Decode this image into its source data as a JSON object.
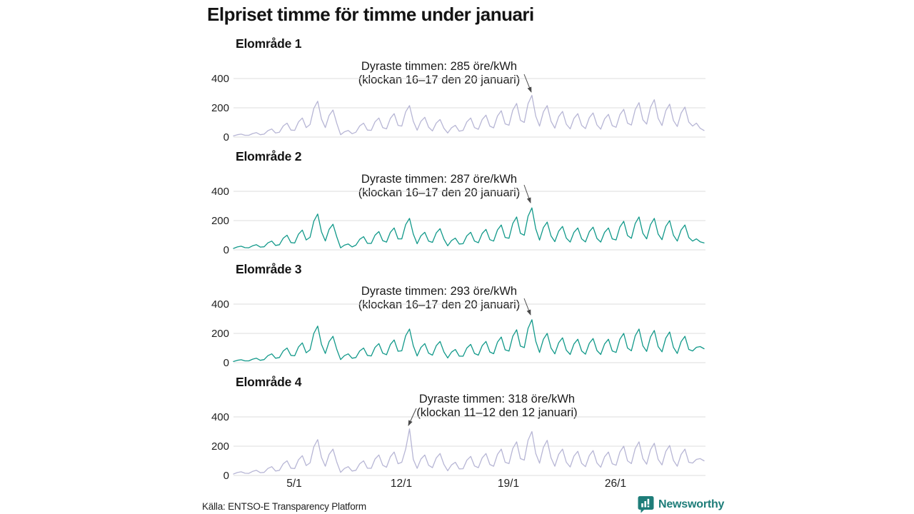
{
  "source": "Källa: ENTSO-E Transparency Platform",
  "brand": {
    "name": "Newsworthy",
    "color": "#1e7d79"
  },
  "chart_data": {
    "type": "line",
    "title": "Elpriset timme för timme under januari",
    "x_axis": {
      "ticks": [
        "5/1",
        "12/1",
        "19/1",
        "26/1"
      ],
      "start": "1/1",
      "end": "31/1",
      "unit": "datum (januari)"
    },
    "y_axis": {
      "ticks": [
        0,
        200,
        400
      ],
      "ylim": [
        0,
        450
      ],
      "unit": "öre/kWh"
    },
    "grid": "horizontal-only",
    "legend": "none",
    "points_per_day": 4,
    "series": [
      {
        "name": "Elområde 1",
        "color": "#b7b6d5",
        "annotation": {
          "line1": "Dyraste timmen: 285 öre/kWh",
          "line2": "(klockan 16–17 den 20 januari)"
        },
        "max": {
          "value_ore_per_kwh": 285,
          "hour": "16–17",
          "date": "20 januari"
        },
        "values": [
          8,
          16,
          20,
          12,
          12,
          24,
          30,
          16,
          20,
          44,
          55,
          28,
          33,
          76,
          95,
          48,
          46,
          104,
          130,
          65,
          86,
          196,
          245,
          123,
          65,
          148,
          185,
          93,
          16,
          36,
          45,
          23,
          33,
          76,
          95,
          48,
          46,
          104,
          130,
          65,
          56,
          128,
          160,
          80,
          75,
          172,
          215,
          108,
          47,
          108,
          135,
          68,
          42,
          96,
          120,
          60,
          28,
          64,
          80,
          40,
          46,
          104,
          130,
          65,
          53,
          120,
          150,
          75,
          63,
          144,
          180,
          90,
          81,
          184,
          230,
          115,
          100,
          228,
          285,
          143,
          75,
          172,
          215,
          108,
          61,
          140,
          175,
          88,
          56,
          128,
          160,
          80,
          58,
          132,
          165,
          83,
          54,
          124,
          155,
          78,
          67,
          152,
          190,
          95,
          82,
          188,
          235,
          118,
          89,
          204,
          255,
          128,
          79,
          180,
          225,
          113,
          72,
          164,
          205,
          103,
          75,
          95,
          60,
          45
        ]
      },
      {
        "name": "Elområde 2",
        "color": "#12998a",
        "annotation": {
          "line1": "Dyraste timmen: 287 öre/kWh",
          "line2": "(klockan 16–17 den 20 januari)"
        },
        "max": {
          "value_ore_per_kwh": 287,
          "hour": "16–17",
          "date": "20 januari"
        },
        "values": [
          10,
          20,
          25,
          15,
          14,
          28,
          35,
          19,
          21,
          48,
          60,
          30,
          35,
          80,
          100,
          50,
          47,
          108,
          135,
          68,
          86,
          196,
          245,
          123,
          61,
          140,
          175,
          88,
          14,
          32,
          40,
          20,
          32,
          72,
          90,
          45,
          44,
          100,
          125,
          63,
          53,
          120,
          150,
          75,
          75,
          172,
          215,
          108,
          42,
          96,
          120,
          60,
          51,
          116,
          145,
          73,
          28,
          64,
          80,
          40,
          42,
          96,
          120,
          60,
          49,
          112,
          140,
          70,
          60,
          136,
          170,
          85,
          79,
          180,
          225,
          113,
          100,
          230,
          287,
          144,
          67,
          152,
          190,
          95,
          56,
          128,
          160,
          80,
          53,
          120,
          150,
          75,
          54,
          124,
          155,
          78,
          53,
          120,
          150,
          75,
          68,
          156,
          195,
          98,
          79,
          180,
          225,
          113,
          75,
          172,
          215,
          108,
          70,
          160,
          200,
          100,
          60,
          136,
          170,
          85,
          60,
          75,
          55,
          48
        ]
      },
      {
        "name": "Elområde 3",
        "color": "#12998a",
        "annotation": {
          "line1": "Dyraste timmen: 293 öre/kWh",
          "line2": "(klockan 16–17 den 20 januari)"
        },
        "max": {
          "value_ore_per_kwh": 293,
          "hour": "16–17",
          "date": "20 januari"
        },
        "values": [
          8,
          16,
          20,
          12,
          12,
          24,
          30,
          16,
          21,
          48,
          60,
          30,
          35,
          80,
          100,
          50,
          47,
          108,
          135,
          68,
          88,
          200,
          250,
          125,
          63,
          144,
          180,
          90,
          21,
          48,
          60,
          30,
          35,
          80,
          100,
          50,
          46,
          104,
          130,
          65,
          54,
          124,
          155,
          78,
          81,
          184,
          230,
          115,
          46,
          104,
          130,
          65,
          51,
          116,
          145,
          73,
          32,
          72,
          90,
          45,
          44,
          100,
          125,
          63,
          51,
          116,
          145,
          73,
          61,
          140,
          175,
          88,
          79,
          180,
          225,
          113,
          103,
          234,
          293,
          147,
          70,
          160,
          200,
          100,
          60,
          136,
          170,
          85,
          56,
          128,
          160,
          80,
          58,
          132,
          165,
          83,
          56,
          128,
          160,
          80,
          70,
          160,
          200,
          100,
          81,
          184,
          230,
          115,
          77,
          176,
          220,
          110,
          74,
          168,
          210,
          105,
          63,
          144,
          180,
          90,
          80,
          105,
          110,
          95
        ]
      },
      {
        "name": "Elområde 4",
        "color": "#b7b6d5",
        "annotation": {
          "line1": "Dyraste timmen: 318 öre/kWh",
          "line2": "(klockan 11–12 den 12 januari)"
        },
        "max": {
          "value_ore_per_kwh": 318,
          "hour": "11–12",
          "date": "12 januari"
        },
        "values": [
          10,
          20,
          25,
          15,
          14,
          28,
          35,
          19,
          21,
          48,
          60,
          30,
          35,
          80,
          100,
          50,
          47,
          108,
          135,
          68,
          86,
          196,
          245,
          123,
          63,
          144,
          180,
          90,
          21,
          48,
          60,
          30,
          35,
          80,
          100,
          50,
          49,
          112,
          140,
          70,
          56,
          128,
          160,
          80,
          90,
          180,
          318,
          110,
          49,
          112,
          140,
          70,
          53,
          120,
          150,
          75,
          32,
          72,
          90,
          45,
          46,
          104,
          130,
          65,
          53,
          120,
          150,
          75,
          63,
          144,
          180,
          90,
          81,
          184,
          230,
          115,
          105,
          240,
          300,
          150,
          84,
          192,
          240,
          120,
          63,
          144,
          180,
          90,
          58,
          132,
          165,
          83,
          60,
          136,
          170,
          85,
          56,
          128,
          160,
          80,
          70,
          160,
          200,
          100,
          81,
          184,
          230,
          115,
          77,
          176,
          220,
          110,
          72,
          164,
          205,
          103,
          63,
          144,
          180,
          90,
          85,
          110,
          115,
          100
        ]
      }
    ]
  }
}
